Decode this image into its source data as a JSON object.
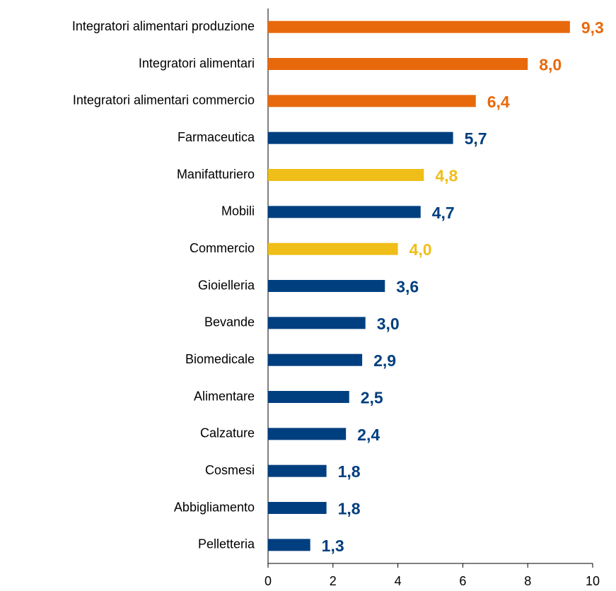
{
  "chart_data": {
    "type": "bar",
    "orientation": "horizontal",
    "categories": [
      "Integratori alimentari produzione",
      "Integratori alimentari",
      "Integratori alimentari commercio",
      "Farmaceutica",
      "Manifatturiero",
      "Mobili",
      "Commercio",
      "Gioielleria",
      "Bevande",
      "Biomedicale",
      "Alimentare",
      "Calzature",
      "Cosmesi",
      "Abbigliamento",
      "Pelletteria"
    ],
    "values": [
      9.3,
      8.0,
      6.4,
      5.7,
      4.8,
      4.7,
      4.0,
      3.6,
      3.0,
      2.9,
      2.5,
      2.4,
      1.8,
      1.8,
      1.3
    ],
    "value_labels": [
      "9,3",
      "8,0",
      "6,4",
      "5,7",
      "4,8",
      "4,7",
      "4,0",
      "3,6",
      "3,0",
      "2,9",
      "2,5",
      "2,4",
      "1,8",
      "1,8",
      "1,3"
    ],
    "colors": [
      "#e8690b",
      "#e8690b",
      "#e8690b",
      "#003f7f",
      "#f0be19",
      "#003f7f",
      "#f0be19",
      "#003f7f",
      "#003f7f",
      "#003f7f",
      "#003f7f",
      "#003f7f",
      "#003f7f",
      "#003f7f",
      "#003f7f"
    ],
    "xlim": [
      0,
      10
    ],
    "xticks": [
      0,
      2,
      4,
      6,
      8,
      10
    ],
    "grid": false
  }
}
